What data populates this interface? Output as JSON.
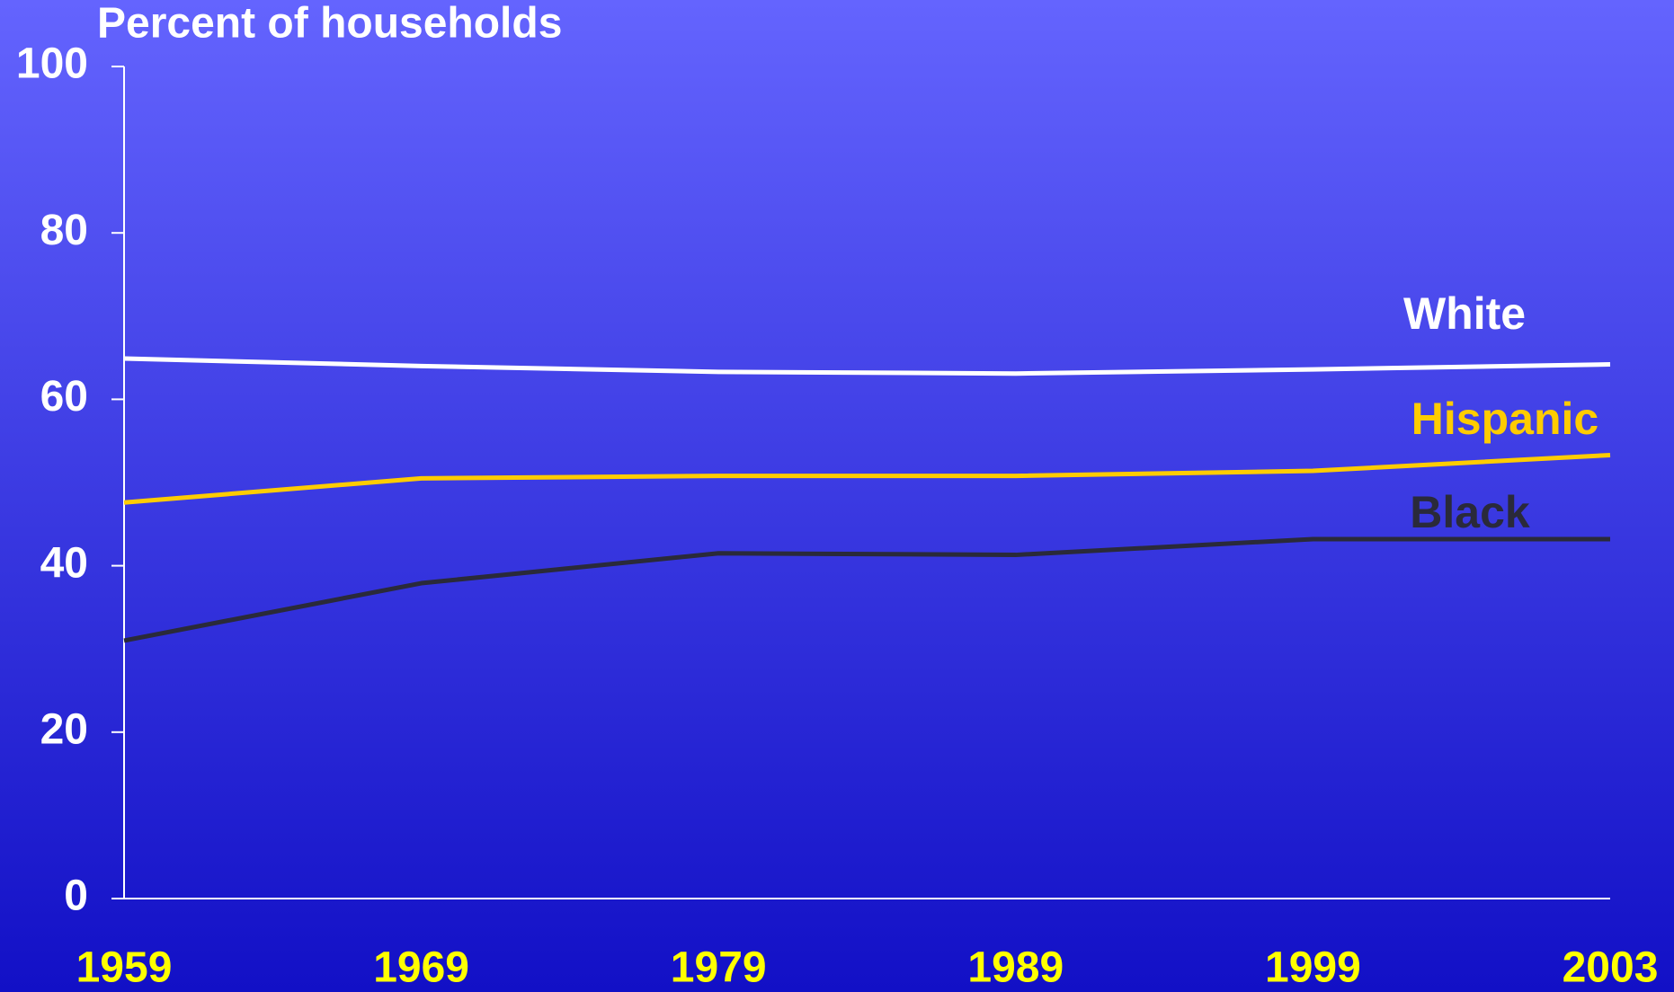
{
  "chart_data": {
    "type": "line",
    "title": "Percent of households",
    "categories": [
      "1959",
      "1969",
      "1979",
      "1989",
      "1999",
      "2003"
    ],
    "series": [
      {
        "name": "White",
        "color": "#ffffff",
        "values": [
          64.9,
          64.0,
          63.3,
          63.1,
          63.6,
          64.2
        ]
      },
      {
        "name": "Hispanic",
        "color": "#ffcc00",
        "values": [
          47.6,
          50.5,
          50.8,
          50.8,
          51.4,
          53.3
        ]
      },
      {
        "name": "Black",
        "color": "#2a2a3a",
        "values": [
          31.0,
          37.9,
          41.5,
          41.3,
          43.2,
          43.2
        ]
      }
    ],
    "ylim": [
      0,
      100
    ],
    "yticks": [
      0,
      20,
      40,
      60,
      80,
      100
    ],
    "grid": false,
    "legend": "direct"
  }
}
